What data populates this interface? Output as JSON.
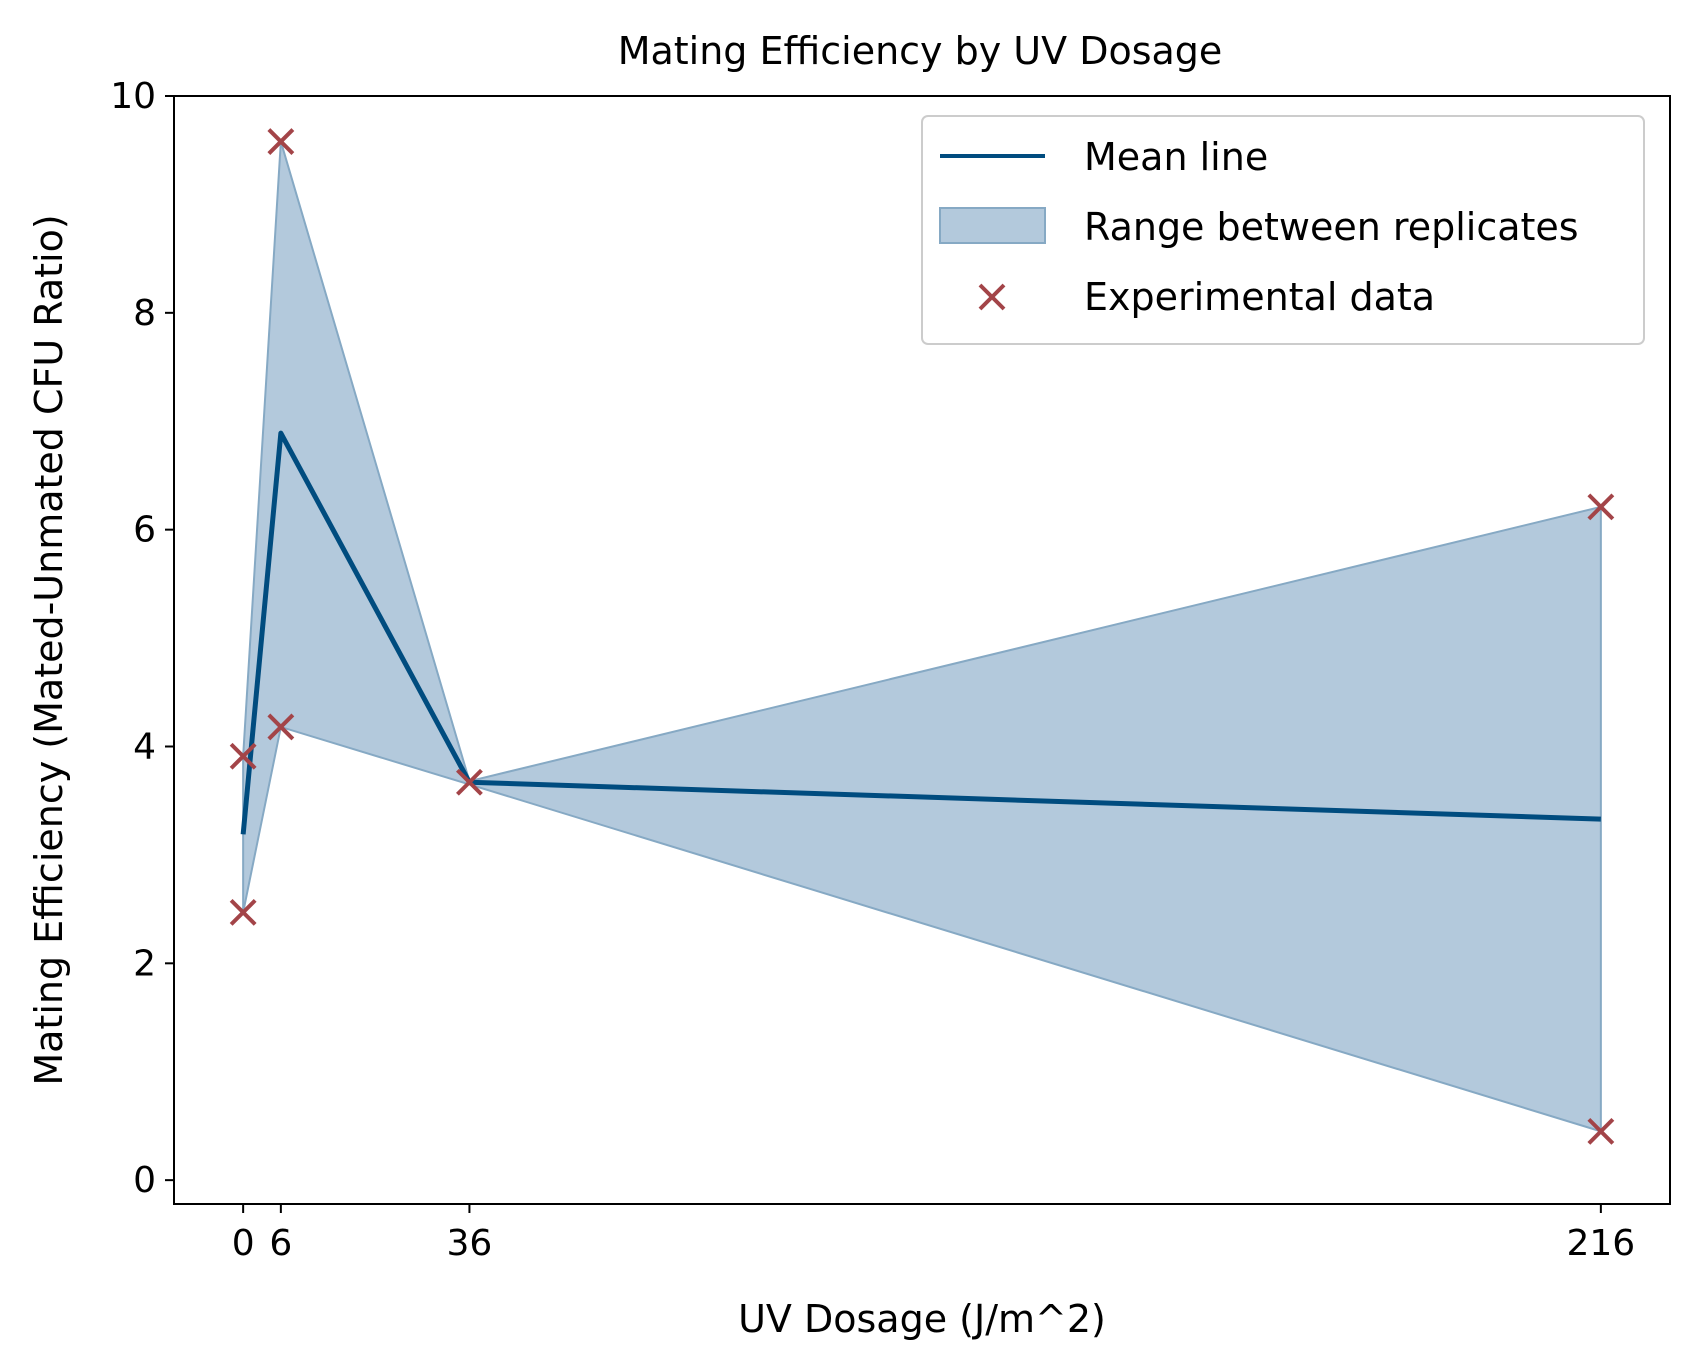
{
  "chart_data": {
    "type": "line",
    "title": "Mating Efficiency by UV Dosage",
    "xlabel": "UV Dosage (J/m^2)",
    "ylabel": "Mating Efficiency (Mated-Unmated CFU Ratio)",
    "xlim": [
      -11,
      227
    ],
    "ylim": [
      -0.22,
      10.0
    ],
    "x_ticks": [
      0,
      6,
      36,
      216
    ],
    "y_ticks": [
      0,
      2,
      4,
      6,
      8,
      10
    ],
    "grid": false,
    "legend_position": "top-right",
    "series": [
      {
        "name": "Mean line",
        "kind": "line",
        "x": [
          0,
          6,
          36,
          216
        ],
        "y": [
          3.19,
          6.89,
          3.67,
          3.33
        ]
      },
      {
        "name": "Range between replicates",
        "kind": "band",
        "x": [
          0,
          6,
          36,
          216
        ],
        "lower": [
          2.47,
          4.18,
          3.65,
          0.45
        ],
        "upper": [
          3.91,
          9.58,
          3.68,
          6.21
        ]
      },
      {
        "name": "Experimental data",
        "kind": "scatter",
        "points": [
          [
            0,
            3.91
          ],
          [
            0,
            2.47
          ],
          [
            6,
            9.58
          ],
          [
            6,
            4.18
          ],
          [
            36,
            3.67
          ],
          [
            216,
            6.21
          ],
          [
            216,
            0.45
          ]
        ]
      }
    ],
    "colors": {
      "mean_line": "#004c7f",
      "band_fill": "#b3c9dc",
      "band_edge": "#86a9c4",
      "marker": "#a34448"
    }
  }
}
